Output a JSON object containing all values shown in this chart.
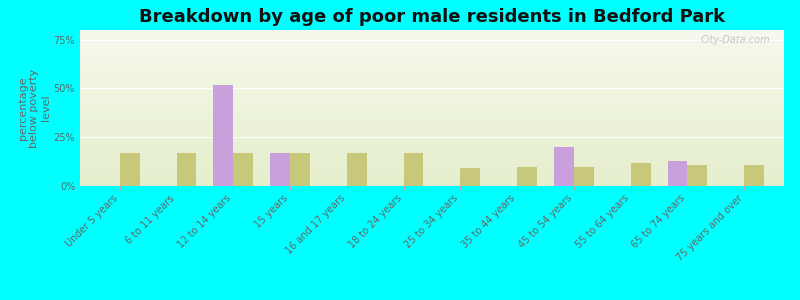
{
  "title": "Breakdown by age of poor male residents in Bedford Park",
  "ylabel": "percentage\nbelow poverty\nlevel",
  "categories": [
    "Under 5 years",
    "6 to 11 years",
    "12 to 14 years",
    "15 years",
    "16 and 17 years",
    "18 to 24 years",
    "25 to 34 years",
    "35 to 44 years",
    "45 to 54 years",
    "55 to 64 years",
    "65 to 74 years",
    "75 years and over"
  ],
  "bedford_park": [
    0,
    0,
    52,
    17,
    0,
    0,
    0,
    0,
    20,
    0,
    13,
    0
  ],
  "illinois": [
    17,
    17,
    17,
    17,
    17,
    17,
    9,
    10,
    10,
    12,
    11,
    11
  ],
  "bedford_color": "#c9a0dc",
  "illinois_color": "#c8c87a",
  "bg_color": "#00ffff",
  "plot_bg_top": "#f0f5e0",
  "plot_bg_bottom": "#e8f0d0",
  "yticks": [
    0,
    25,
    50,
    75
  ],
  "ylim": [
    0,
    80
  ],
  "bar_width": 0.35,
  "title_fontsize": 13,
  "label_fontsize": 7.0,
  "ylabel_fontsize": 8,
  "watermark": "City-Data.com"
}
